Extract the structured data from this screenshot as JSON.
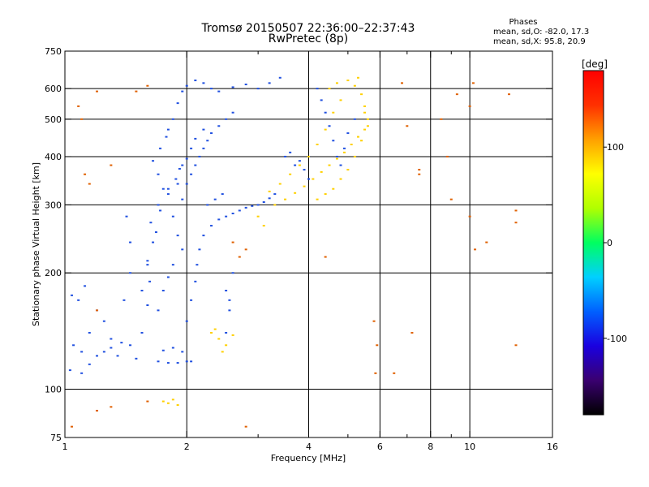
{
  "chart_data": {
    "type": "scatter",
    "title": "Tromsø 20150507 22:36:00–22:37:43",
    "subtitle": "RwPretec (8p)",
    "xlabel": "Frequency [MHz]",
    "ylabel": "Stationary phase Virtual Height [km]",
    "x_scale": "log",
    "y_scale": "log",
    "xlim": [
      1,
      16
    ],
    "ylim": [
      75,
      750
    ],
    "x_ticks": [
      1,
      2,
      4,
      6,
      8,
      10,
      16
    ],
    "x_minor_ticks": [
      3,
      5,
      7,
      9
    ],
    "y_ticks": [
      75,
      100,
      200,
      300,
      400,
      500,
      600,
      750
    ],
    "grid": true,
    "stats": {
      "heading": "Phases",
      "line_o": "mean, sd,O: -82.0, 17.3",
      "line_x": "mean, sd,X:  95.8, 20.9"
    },
    "colorbar": {
      "label": "[deg]",
      "ticks": [
        100,
        0,
        -100
      ],
      "range": [
        -180,
        180
      ],
      "colors": [
        "#000000",
        "#3a0070",
        "#1a00e0",
        "#0060ff",
        "#00d0ff",
        "#00ff60",
        "#b0ff00",
        "#ffff00",
        "#ffa000",
        "#ff3000",
        "#ff0000"
      ],
      "placement": "right"
    },
    "series": [
      {
        "description_id": "o_mode",
        "color_sample": "#2050e0",
        "points": [
          [
            1.03,
            112
          ],
          [
            1.05,
            130
          ],
          [
            1.1,
            125
          ],
          [
            1.15,
            140
          ],
          [
            1.08,
            170
          ],
          [
            1.04,
            175
          ],
          [
            1.12,
            185
          ],
          [
            1.2,
            160
          ],
          [
            1.25,
            150
          ],
          [
            1.3,
            135
          ],
          [
            1.35,
            122
          ],
          [
            1.4,
            170
          ],
          [
            1.45,
            200
          ],
          [
            1.45,
            240
          ],
          [
            1.42,
            280
          ],
          [
            1.5,
            120
          ],
          [
            1.55,
            140
          ],
          [
            1.6,
            165
          ],
          [
            1.62,
            190
          ],
          [
            1.6,
            215
          ],
          [
            1.65,
            240
          ],
          [
            1.63,
            270
          ],
          [
            1.7,
            300
          ],
          [
            1.75,
            330
          ],
          [
            1.7,
            360
          ],
          [
            1.65,
            390
          ],
          [
            1.72,
            420
          ],
          [
            1.78,
            450
          ],
          [
            1.8,
            470
          ],
          [
            1.85,
            500
          ],
          [
            1.9,
            550
          ],
          [
            1.95,
            590
          ],
          [
            2.0,
            610
          ],
          [
            2.1,
            630
          ],
          [
            2.2,
            620
          ],
          [
            2.3,
            600
          ],
          [
            2.4,
            590
          ],
          [
            2.6,
            605
          ],
          [
            2.8,
            615
          ],
          [
            3.0,
            600
          ],
          [
            3.2,
            620
          ],
          [
            3.4,
            640
          ],
          [
            1.7,
            118
          ],
          [
            1.8,
            117
          ],
          [
            1.9,
            117
          ],
          [
            2.0,
            118
          ],
          [
            2.05,
            118
          ],
          [
            1.75,
            126
          ],
          [
            1.85,
            128
          ],
          [
            1.95,
            125
          ],
          [
            2.0,
            150
          ],
          [
            2.05,
            170
          ],
          [
            2.1,
            190
          ],
          [
            2.12,
            210
          ],
          [
            2.15,
            230
          ],
          [
            2.2,
            250
          ],
          [
            2.3,
            265
          ],
          [
            2.4,
            275
          ],
          [
            2.5,
            280
          ],
          [
            2.6,
            285
          ],
          [
            2.7,
            290
          ],
          [
            2.8,
            295
          ],
          [
            2.9,
            298
          ],
          [
            3.0,
            300
          ],
          [
            3.1,
            305
          ],
          [
            3.2,
            312
          ],
          [
            3.3,
            320
          ],
          [
            2.25,
            300
          ],
          [
            2.35,
            310
          ],
          [
            2.45,
            320
          ],
          [
            2.0,
            340
          ],
          [
            2.05,
            360
          ],
          [
            2.1,
            380
          ],
          [
            2.15,
            400
          ],
          [
            2.2,
            420
          ],
          [
            2.25,
            440
          ],
          [
            2.3,
            460
          ],
          [
            2.4,
            480
          ],
          [
            2.5,
            500
          ],
          [
            2.6,
            520
          ],
          [
            1.8,
            330
          ],
          [
            1.9,
            340
          ],
          [
            1.95,
            310
          ],
          [
            1.85,
            280
          ],
          [
            1.9,
            250
          ],
          [
            1.95,
            230
          ],
          [
            1.85,
            210
          ],
          [
            1.8,
            195
          ],
          [
            1.75,
            180
          ],
          [
            1.7,
            160
          ],
          [
            1.95,
            380
          ],
          [
            2.0,
            395
          ],
          [
            2.05,
            420
          ],
          [
            2.1,
            445
          ],
          [
            2.2,
            470
          ],
          [
            2.5,
            140
          ],
          [
            2.55,
            160
          ],
          [
            2.5,
            180
          ],
          [
            2.6,
            200
          ],
          [
            2.55,
            170
          ],
          [
            4.2,
            600
          ],
          [
            4.3,
            560
          ],
          [
            4.4,
            520
          ],
          [
            4.5,
            480
          ],
          [
            4.6,
            440
          ],
          [
            4.7,
            400
          ],
          [
            4.8,
            380
          ],
          [
            4.9,
            420
          ],
          [
            5.0,
            460
          ],
          [
            5.2,
            500
          ],
          [
            3.6,
            410
          ],
          [
            3.8,
            390
          ],
          [
            3.9,
            370
          ],
          [
            4.0,
            350
          ],
          [
            3.5,
            400
          ],
          [
            3.7,
            380
          ],
          [
            1.25,
            125
          ],
          [
            1.3,
            128
          ],
          [
            1.38,
            132
          ],
          [
            1.45,
            130
          ],
          [
            1.1,
            110
          ],
          [
            1.15,
            116
          ],
          [
            1.2,
            122
          ],
          [
            1.55,
            180
          ],
          [
            1.6,
            210
          ],
          [
            1.68,
            255
          ],
          [
            1.72,
            290
          ],
          [
            1.8,
            320
          ],
          [
            1.88,
            350
          ],
          [
            1.92,
            372
          ]
        ]
      },
      {
        "description_id": "x_mode",
        "color_sample": "#ffd000",
        "points": [
          [
            3.3,
            300
          ],
          [
            3.5,
            310
          ],
          [
            3.7,
            322
          ],
          [
            3.9,
            335
          ],
          [
            4.1,
            350
          ],
          [
            4.3,
            365
          ],
          [
            4.5,
            380
          ],
          [
            4.7,
            395
          ],
          [
            4.9,
            410
          ],
          [
            5.1,
            430
          ],
          [
            5.3,
            450
          ],
          [
            5.5,
            470
          ],
          [
            5.6,
            500
          ],
          [
            5.5,
            540
          ],
          [
            5.4,
            580
          ],
          [
            5.2,
            610
          ],
          [
            5.0,
            630
          ],
          [
            4.8,
            560
          ],
          [
            4.6,
            520
          ],
          [
            4.4,
            470
          ],
          [
            4.2,
            430
          ],
          [
            4.0,
            400
          ],
          [
            3.8,
            380
          ],
          [
            3.6,
            360
          ],
          [
            3.4,
            340
          ],
          [
            3.2,
            325
          ],
          [
            3.0,
            280
          ],
          [
            3.1,
            265
          ],
          [
            2.3,
            140
          ],
          [
            2.4,
            135
          ],
          [
            2.5,
            130
          ],
          [
            2.6,
            138
          ],
          [
            2.45,
            125
          ],
          [
            2.35,
            143
          ],
          [
            1.75,
            93
          ],
          [
            1.8,
            92
          ],
          [
            1.85,
            94
          ],
          [
            1.9,
            91
          ],
          [
            4.5,
            600
          ],
          [
            4.7,
            620
          ],
          [
            5.3,
            640
          ],
          [
            5.5,
            520
          ],
          [
            5.6,
            480
          ],
          [
            5.4,
            440
          ],
          [
            5.2,
            400
          ],
          [
            5.0,
            370
          ],
          [
            4.8,
            350
          ],
          [
            4.6,
            330
          ],
          [
            4.4,
            320
          ],
          [
            4.2,
            310
          ]
        ]
      },
      {
        "description_id": "scattered",
        "color_sample": "#e06000",
        "points": [
          [
            1.12,
            360
          ],
          [
            1.15,
            340
          ],
          [
            1.3,
            380
          ],
          [
            1.2,
            160
          ],
          [
            1.08,
            540
          ],
          [
            1.1,
            500
          ],
          [
            5.8,
            150
          ],
          [
            5.9,
            130
          ],
          [
            5.85,
            110
          ],
          [
            7.0,
            480
          ],
          [
            7.5,
            360
          ],
          [
            8.5,
            500
          ],
          [
            8.8,
            400
          ],
          [
            9.0,
            310
          ],
          [
            10.0,
            540
          ],
          [
            10.2,
            620
          ],
          [
            10.0,
            280
          ],
          [
            10.3,
            230
          ],
          [
            11.0,
            240
          ],
          [
            13.0,
            130
          ],
          [
            13.0,
            270
          ],
          [
            13.0,
            290
          ],
          [
            7.2,
            140
          ],
          [
            6.5,
            110
          ],
          [
            4.4,
            220
          ],
          [
            2.8,
            230
          ],
          [
            2.6,
            240
          ],
          [
            2.7,
            220
          ],
          [
            1.5,
            590
          ],
          [
            1.2,
            590
          ],
          [
            1.6,
            610
          ],
          [
            1.3,
            90
          ],
          [
            1.2,
            88
          ],
          [
            1.04,
            80
          ],
          [
            1.6,
            93
          ],
          [
            2.8,
            80
          ],
          [
            6.8,
            620
          ],
          [
            7.5,
            370
          ],
          [
            9.3,
            580
          ],
          [
            12.5,
            580
          ]
        ]
      }
    ]
  }
}
